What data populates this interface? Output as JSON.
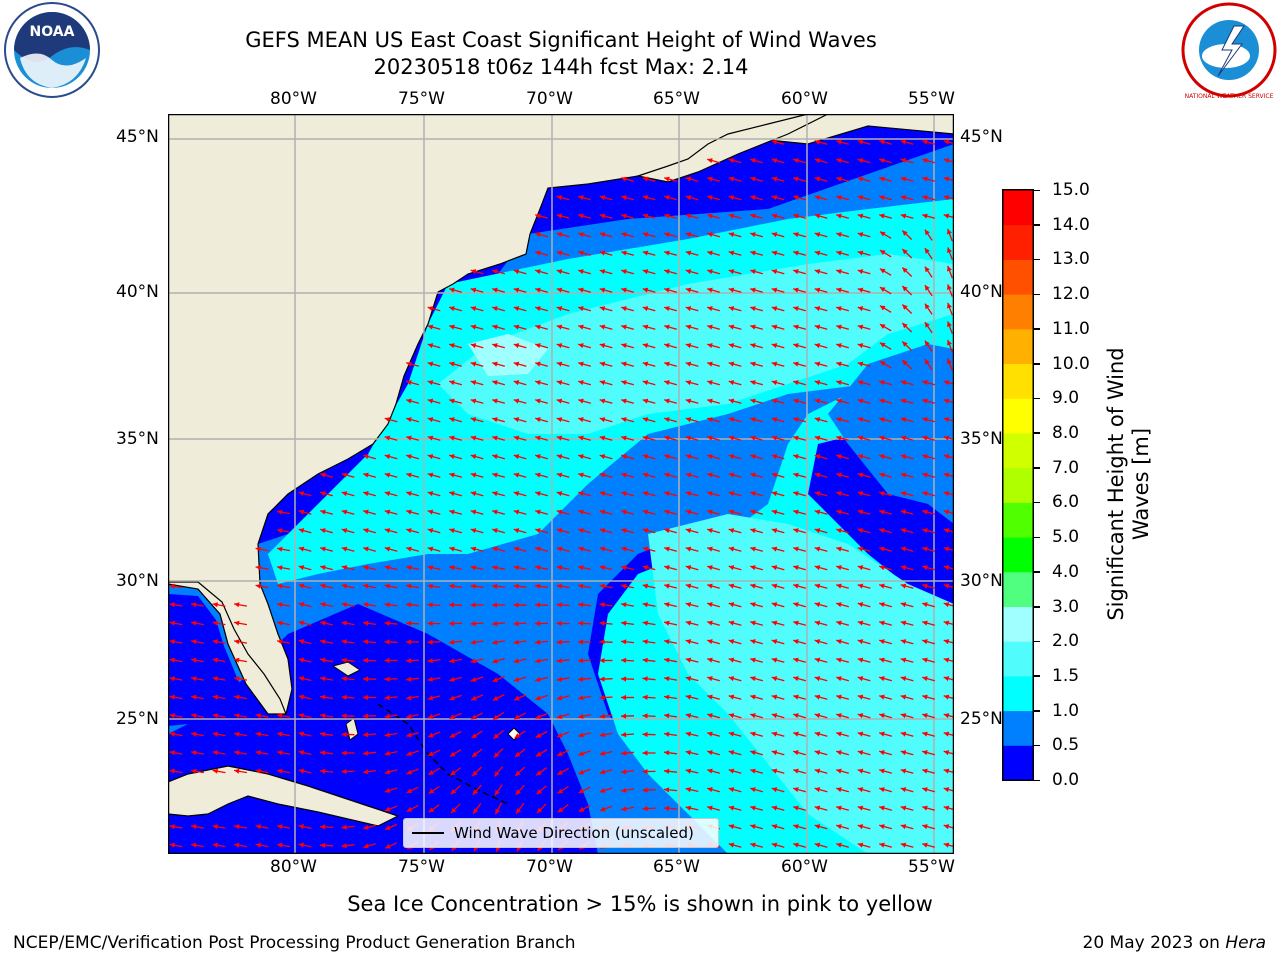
{
  "header": {
    "title_line1": "GEFS MEAN US East Coast Significant Height of Wind Waves",
    "title_line2": "20230518 t06z 144h fcst   Max: 2.14"
  },
  "logos": {
    "noaa_text": "NOAA",
    "nws_text": "NATIONAL WEATHER SERVICE"
  },
  "map": {
    "lon_labels": [
      "80°W",
      "75°W",
      "70°W",
      "65°W",
      "60°W",
      "55°W"
    ],
    "lat_labels": [
      "45°N",
      "40°N",
      "35°N",
      "30°N",
      "25°N"
    ],
    "legend_label": "Wind Wave Direction (unscaled)",
    "colors": {
      "land": "#efedd9",
      "ocean_low": "#0000ff",
      "ocean_mid": "#0080ff",
      "ocean_high": "#00ffff",
      "ocean_peak": "#50fcfc",
      "arrow": "#ff0000",
      "grid": "#b0b0b0"
    },
    "arrow_direction": "from east-northeast (pointing west-southwest)"
  },
  "colorbar": {
    "label_line1": "Significant Height of Wind",
    "label_line2": "Waves [m]",
    "ticks": [
      "15.0",
      "14.0",
      "13.0",
      "12.0",
      "11.0",
      "10.0",
      "9.0",
      "8.0",
      "7.0",
      "6.0",
      "5.0",
      "4.0",
      "3.0",
      "2.0",
      "1.5",
      "1.0",
      "0.5",
      "0.0"
    ],
    "colors_bottom_to_top": [
      "#0000ff",
      "#0080ff",
      "#00ffff",
      "#50fcfc",
      "#a0ffff",
      "#50ff80",
      "#00ff00",
      "#50ff00",
      "#b0ff00",
      "#d0ff00",
      "#ffff00",
      "#ffe000",
      "#ffb000",
      "#ff8000",
      "#ff5000",
      "#ff2000",
      "#ff0000"
    ]
  },
  "footer": {
    "note": "Sea Ice Concentration > 15% is shown in pink to yellow",
    "branch": "NCEP/EMC/Verification Post Processing Product Generation Branch",
    "date_prefix": "20 May 2023 on ",
    "machine": "Hera"
  }
}
